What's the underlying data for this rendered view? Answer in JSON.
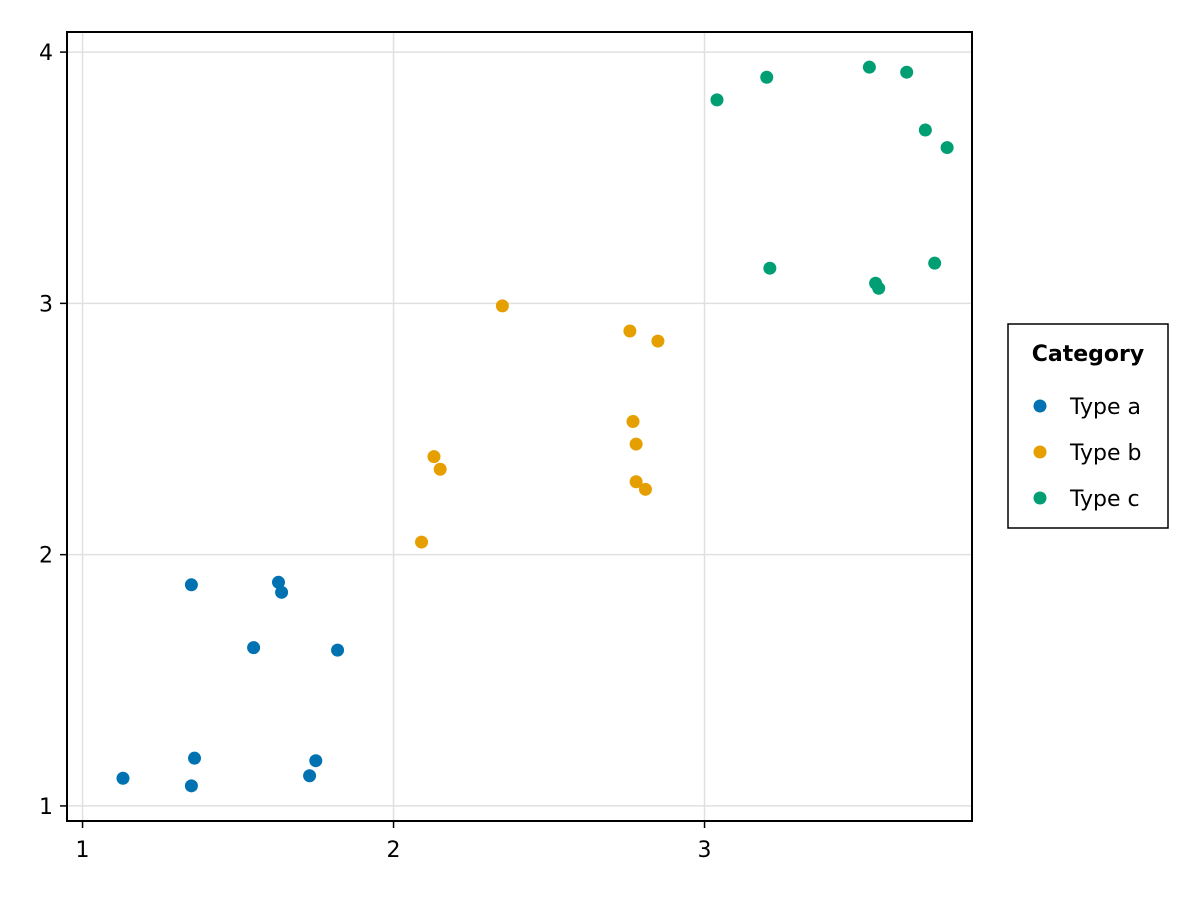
{
  "chart_data": {
    "type": "scatter",
    "title": "",
    "xlabel": "",
    "ylabel": "",
    "xlim": [
      0.95,
      3.86
    ],
    "ylim": [
      0.94,
      4.08
    ],
    "x_ticks": [
      1,
      2,
      3
    ],
    "y_ticks": [
      1,
      2,
      3,
      4
    ],
    "grid": true,
    "legend": {
      "title": "Category",
      "placement": "right"
    },
    "series": [
      {
        "name": "Type a",
        "color": "#0072B2",
        "points": [
          {
            "x": 1.13,
            "y": 1.11
          },
          {
            "x": 1.35,
            "y": 1.08
          },
          {
            "x": 1.36,
            "y": 1.19
          },
          {
            "x": 1.73,
            "y": 1.12
          },
          {
            "x": 1.75,
            "y": 1.18
          },
          {
            "x": 1.55,
            "y": 1.63
          },
          {
            "x": 1.82,
            "y": 1.62
          },
          {
            "x": 1.35,
            "y": 1.88
          },
          {
            "x": 1.63,
            "y": 1.89
          },
          {
            "x": 1.64,
            "y": 1.85
          }
        ]
      },
      {
        "name": "Type b",
        "color": "#E69F00",
        "points": [
          {
            "x": 2.09,
            "y": 2.05
          },
          {
            "x": 2.13,
            "y": 2.39
          },
          {
            "x": 2.15,
            "y": 2.34
          },
          {
            "x": 2.35,
            "y": 2.99
          },
          {
            "x": 2.76,
            "y": 2.89
          },
          {
            "x": 2.85,
            "y": 2.85
          },
          {
            "x": 2.77,
            "y": 2.53
          },
          {
            "x": 2.78,
            "y": 2.44
          },
          {
            "x": 2.78,
            "y": 2.29
          },
          {
            "x": 2.81,
            "y": 2.26
          }
        ]
      },
      {
        "name": "Type c",
        "color": "#009E73",
        "points": [
          {
            "x": 3.04,
            "y": 3.81
          },
          {
            "x": 3.2,
            "y": 3.9
          },
          {
            "x": 3.53,
            "y": 3.94
          },
          {
            "x": 3.65,
            "y": 3.92
          },
          {
            "x": 3.71,
            "y": 3.69
          },
          {
            "x": 3.78,
            "y": 3.62
          },
          {
            "x": 3.21,
            "y": 3.14
          },
          {
            "x": 3.55,
            "y": 3.08
          },
          {
            "x": 3.56,
            "y": 3.06
          },
          {
            "x": 3.74,
            "y": 3.16
          }
        ]
      }
    ]
  }
}
